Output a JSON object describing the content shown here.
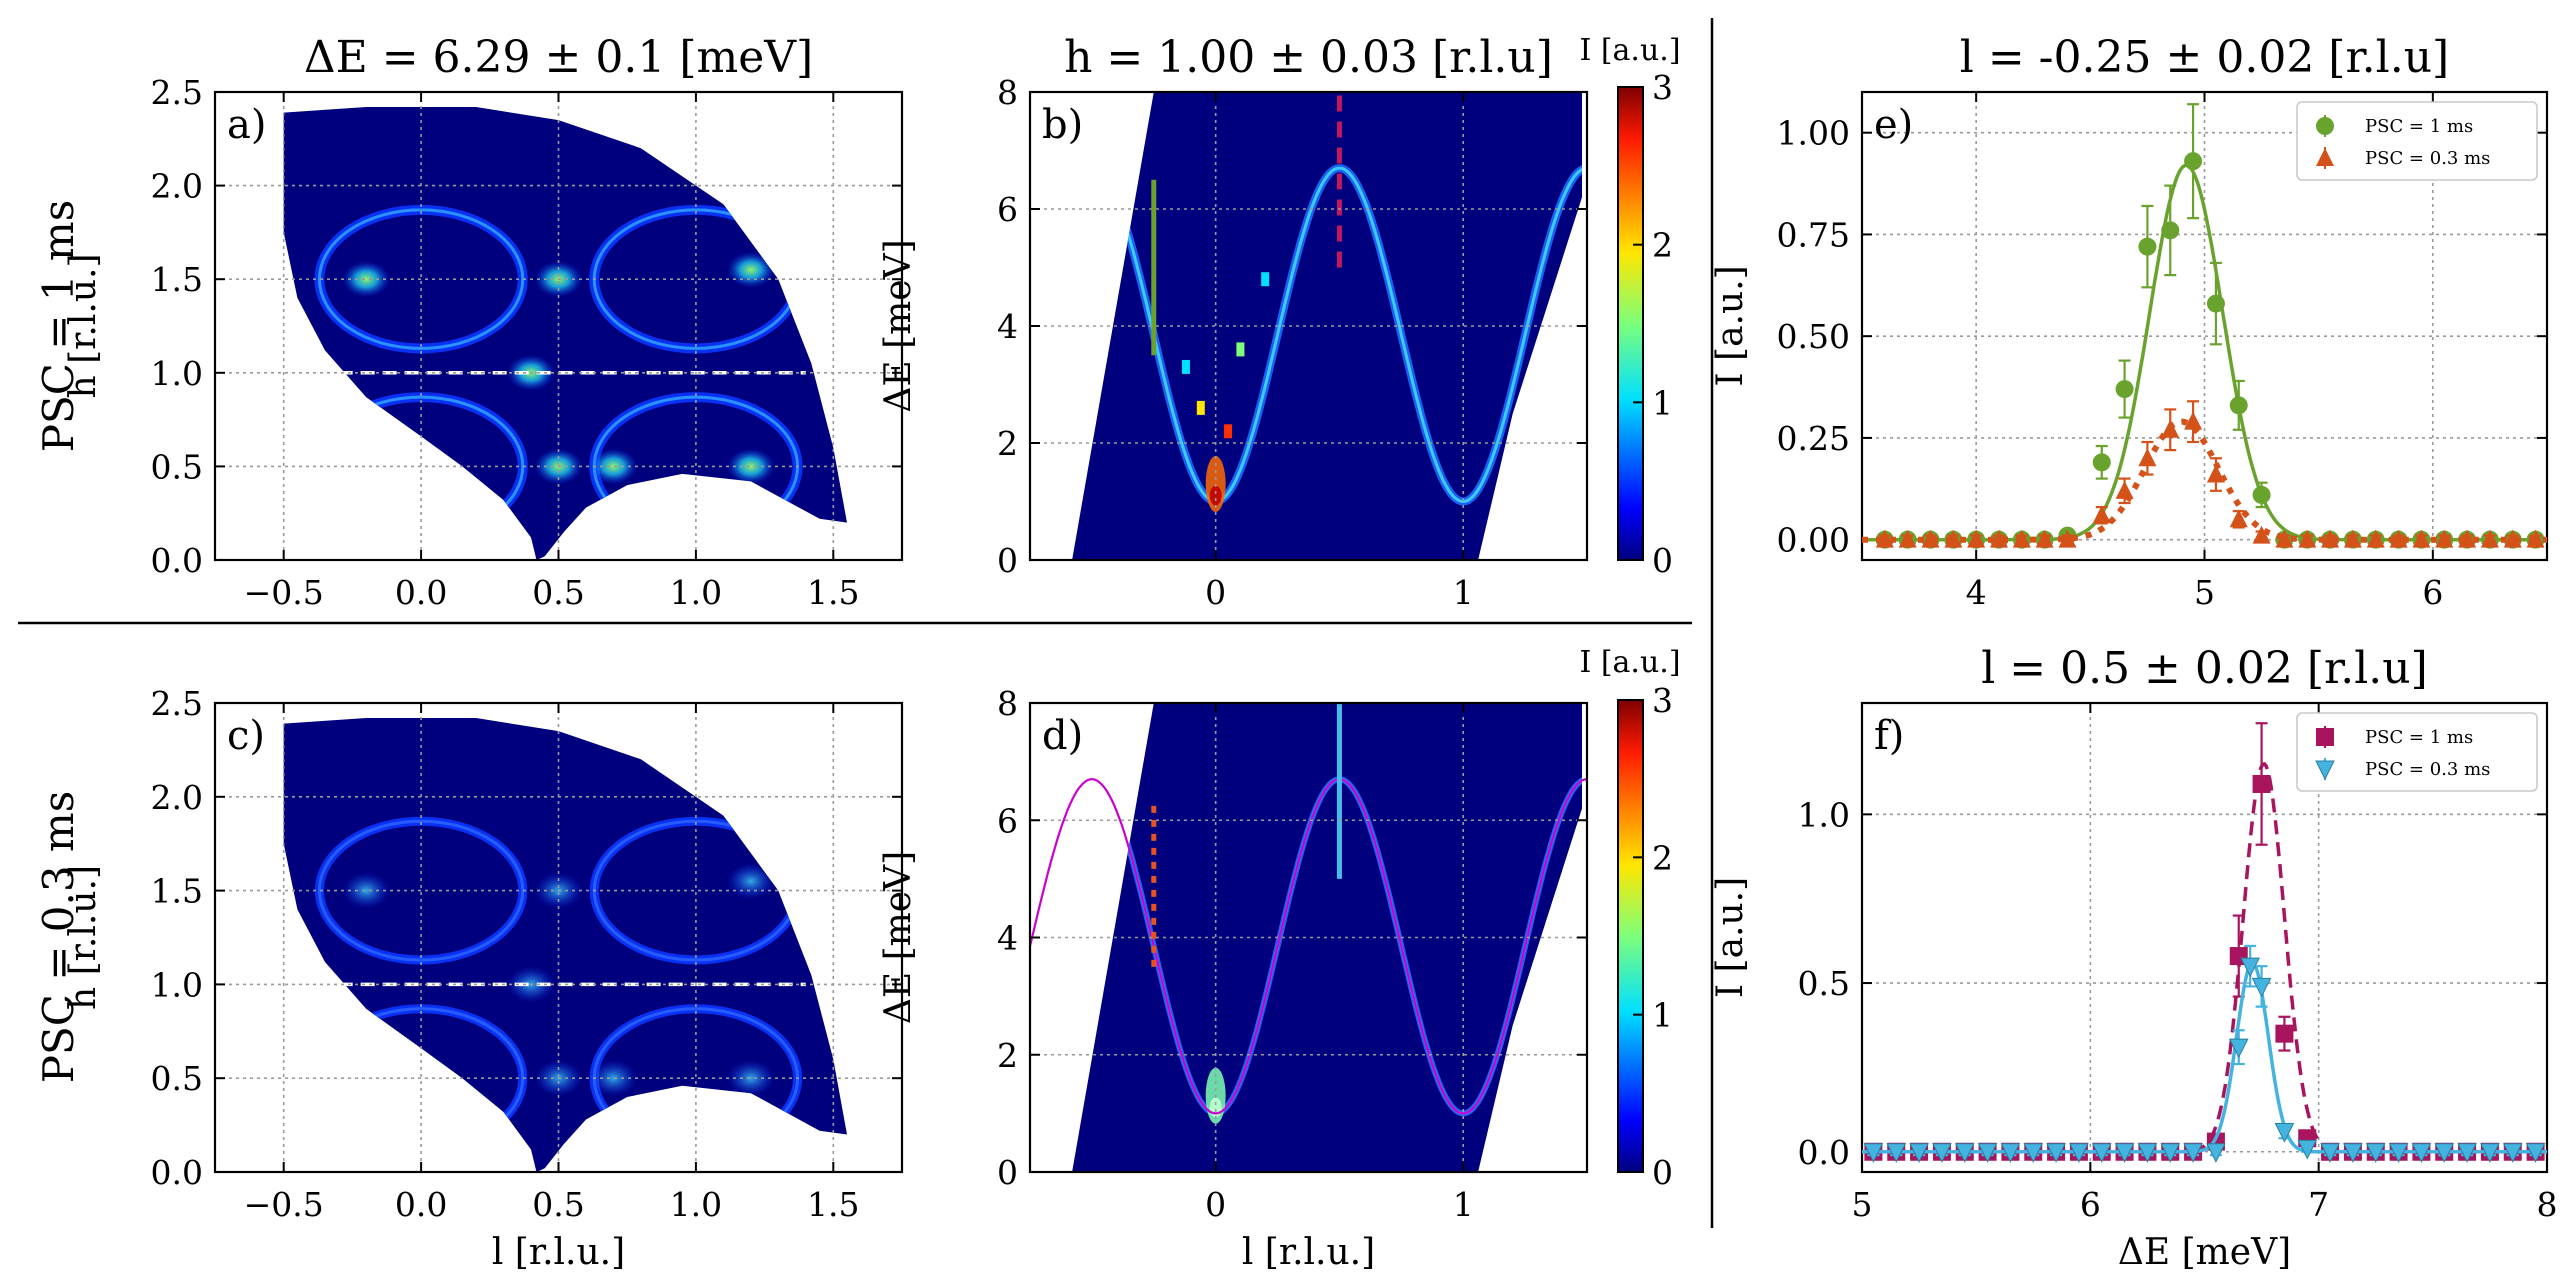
{
  "row_labels": {
    "top": "PSC = 1 ms",
    "bottom": "PSC = 0.3 ms"
  },
  "colorbar": {
    "title": "I [a.u.]",
    "ticks": [
      "0",
      "1",
      "2",
      "3"
    ]
  },
  "chart_data": [
    {
      "id": "a",
      "panel_label": "a)",
      "type": "heatmap",
      "title": "ΔE = 6.29 ± 0.1 [meV]",
      "xlabel": "",
      "ylabel": "h [r.l.u.]",
      "xlim": [
        -0.75,
        1.75
      ],
      "ylim": [
        0,
        2.5
      ],
      "xticks": [
        -0.5,
        0,
        0.5,
        1,
        1.5
      ],
      "xtick_labels": [
        "−0.5",
        "0.0",
        "0.5",
        "1.0",
        "1.5"
      ],
      "yticks": [
        0,
        0.5,
        1,
        1.5,
        2,
        2.5
      ],
      "ytick_labels": [
        "0.0",
        "0.5",
        "1.0",
        "1.5",
        "2.0",
        "2.5"
      ],
      "rings": [
        {
          "cx": 0,
          "cy": 1.5
        },
        {
          "cx": 1,
          "cy": 1.5
        },
        {
          "cx": 0,
          "cy": 0.5
        },
        {
          "cx": 1,
          "cy": 0.5
        }
      ],
      "ring_radius": 0.37,
      "cut_line": {
        "h": 1.0,
        "l_from": -0.3,
        "l_to": 1.4
      },
      "grid": true
    },
    {
      "id": "b",
      "panel_label": "b)",
      "type": "heatmap",
      "title": "h = 1.00 ± 0.03 [r.l.u]",
      "xlabel": "",
      "ylabel": "ΔE [meV]",
      "xlim": [
        -0.75,
        1.5
      ],
      "ylim": [
        0,
        8
      ],
      "xticks": [
        0,
        1
      ],
      "xtick_labels": [
        "0",
        "1"
      ],
      "yticks": [
        0,
        2,
        4,
        6,
        8
      ],
      "ytick_labels": [
        "0",
        "2",
        "4",
        "6",
        "8"
      ],
      "dispersion": {
        "E_min": 1.0,
        "E_max": 6.7,
        "l_min": 0,
        "l_max": 0.5
      },
      "markers": [
        {
          "l": -0.25,
          "E_from": 3.5,
          "E_to": 6.5,
          "color": "#6aa22e",
          "style": "solid"
        },
        {
          "l": 0.5,
          "E_from": 5.0,
          "E_to": 8.0,
          "color": "#c2185b",
          "style": "dashed"
        }
      ],
      "grid": true
    },
    {
      "id": "c",
      "panel_label": "c)",
      "type": "heatmap",
      "title": "",
      "xlabel": "l [r.l.u.]",
      "ylabel": "h [r.l.u.]",
      "xlim": [
        -0.75,
        1.75
      ],
      "ylim": [
        0,
        2.5
      ],
      "xticks": [
        -0.5,
        0,
        0.5,
        1,
        1.5
      ],
      "xtick_labels": [
        "−0.5",
        "0.0",
        "0.5",
        "1.0",
        "1.5"
      ],
      "yticks": [
        0,
        0.5,
        1,
        1.5,
        2,
        2.5
      ],
      "ytick_labels": [
        "0.0",
        "0.5",
        "1.0",
        "1.5",
        "2.0",
        "2.5"
      ],
      "rings": [
        {
          "cx": 0,
          "cy": 1.5
        },
        {
          "cx": 1,
          "cy": 1.5
        },
        {
          "cx": 0,
          "cy": 0.5
        },
        {
          "cx": 1,
          "cy": 0.5
        }
      ],
      "ring_radius": 0.37,
      "cut_line": {
        "h": 1.0,
        "l_from": -0.3,
        "l_to": 1.4
      },
      "grid": true
    },
    {
      "id": "d",
      "panel_label": "d)",
      "type": "heatmap",
      "title": "",
      "xlabel": "l [r.l.u.]",
      "ylabel": "ΔE [meV]",
      "xlim": [
        -0.75,
        1.5
      ],
      "ylim": [
        0,
        8
      ],
      "xticks": [
        0,
        1
      ],
      "xtick_labels": [
        "0",
        "1"
      ],
      "yticks": [
        0,
        2,
        4,
        6,
        8
      ],
      "ytick_labels": [
        "0",
        "2",
        "4",
        "6",
        "8"
      ],
      "dispersion": {
        "E_min": 1.0,
        "E_max": 6.7,
        "l_min": 0,
        "l_max": 0.5
      },
      "fit_curve_color": "#cc00cc",
      "markers": [
        {
          "l": -0.25,
          "E_from": 3.5,
          "E_to": 6.3,
          "color": "#e8531f",
          "style": "dotted"
        },
        {
          "l": 0.5,
          "E_from": 5.0,
          "E_to": 8.0,
          "color": "#44bde8",
          "style": "solid"
        }
      ],
      "grid": true
    },
    {
      "id": "e",
      "panel_label": "e)",
      "type": "scatter",
      "title": "l = -0.25 ± 0.02 [r.l.u]",
      "xlabel": "",
      "ylabel": "I [a.u.]",
      "xlim": [
        3.5,
        6.5
      ],
      "ylim": [
        -0.05,
        1.1
      ],
      "xticks": [
        4,
        5,
        6
      ],
      "xtick_labels": [
        "4",
        "5",
        "6"
      ],
      "yticks": [
        0,
        0.25,
        0.5,
        0.75,
        1.0
      ],
      "ytick_labels": [
        "0.00",
        "0.25",
        "0.50",
        "0.75",
        "1.00"
      ],
      "series": [
        {
          "name": "PSC = 1 ms",
          "marker": "circle",
          "color": "#6aa22e",
          "x": [
            3.6,
            3.7,
            3.8,
            3.9,
            4.0,
            4.1,
            4.2,
            4.3,
            4.4,
            4.55,
            4.65,
            4.75,
            4.85,
            4.95,
            5.05,
            5.15,
            5.25,
            5.35,
            5.45,
            5.55,
            5.65,
            5.75,
            5.85,
            5.95,
            6.05,
            6.15,
            6.25,
            6.35,
            6.45
          ],
          "y": [
            0,
            0,
            0,
            0,
            0,
            0,
            0,
            0,
            0.01,
            0.19,
            0.37,
            0.72,
            0.76,
            0.93,
            0.58,
            0.33,
            0.11,
            0,
            0,
            0,
            0,
            0,
            0,
            0,
            0,
            0,
            0,
            0,
            0
          ],
          "err": [
            0.01,
            0.01,
            0.01,
            0.01,
            0.01,
            0.01,
            0.01,
            0.01,
            0.01,
            0.04,
            0.07,
            0.1,
            0.11,
            0.14,
            0.1,
            0.06,
            0.03,
            0.01,
            0.01,
            0.01,
            0.01,
            0.01,
            0.01,
            0.01,
            0.01,
            0.01,
            0.01,
            0.01,
            0.01
          ],
          "fit": {
            "amp": 0.92,
            "center": 4.92,
            "sigma": 0.16,
            "style": "solid"
          }
        },
        {
          "name": "PSC = 0.3 ms",
          "marker": "triangle-up",
          "color": "#d4521a",
          "x": [
            3.6,
            3.7,
            3.8,
            3.9,
            4.0,
            4.1,
            4.2,
            4.3,
            4.4,
            4.55,
            4.65,
            4.75,
            4.85,
            4.95,
            5.05,
            5.15,
            5.25,
            5.35,
            5.45,
            5.55,
            5.65,
            5.75,
            5.85,
            5.95,
            6.05,
            6.15,
            6.25,
            6.35,
            6.45
          ],
          "y": [
            0,
            0,
            0,
            0,
            0,
            0,
            0,
            0,
            0,
            0.06,
            0.12,
            0.2,
            0.27,
            0.29,
            0.16,
            0.05,
            0.01,
            0,
            0,
            0,
            0,
            0,
            0,
            0,
            0,
            0,
            0,
            0,
            0
          ],
          "err": [
            0.01,
            0.01,
            0.01,
            0.01,
            0.01,
            0.01,
            0.01,
            0.01,
            0.01,
            0.02,
            0.03,
            0.04,
            0.05,
            0.05,
            0.04,
            0.02,
            0.01,
            0.01,
            0.01,
            0.01,
            0.01,
            0.01,
            0.01,
            0.01,
            0.01,
            0.01,
            0.01,
            0.01,
            0.01
          ],
          "fit": {
            "amp": 0.29,
            "center": 4.9,
            "sigma": 0.16,
            "style": "dotted"
          }
        }
      ],
      "legend": "top-right",
      "grid": true
    },
    {
      "id": "f",
      "panel_label": "f)",
      "type": "scatter",
      "title": "l = 0.5 ± 0.02 [r.l.u]",
      "xlabel": "ΔE [meV]",
      "ylabel": "I [a.u.]",
      "xlim": [
        5,
        8
      ],
      "ylim": [
        -0.06,
        1.33
      ],
      "xticks": [
        5,
        6,
        7,
        8
      ],
      "xtick_labels": [
        "5",
        "6",
        "7",
        "8"
      ],
      "yticks": [
        0,
        0.5,
        1.0
      ],
      "ytick_labels": [
        "0.0",
        "0.5",
        "1.0"
      ],
      "series": [
        {
          "name": "PSC = 1 ms",
          "marker": "square",
          "color": "#a8155e",
          "x": [
            5.05,
            5.15,
            5.25,
            5.35,
            5.45,
            5.55,
            5.65,
            5.75,
            5.85,
            5.95,
            6.05,
            6.15,
            6.25,
            6.35,
            6.45,
            6.55,
            6.65,
            6.75,
            6.85,
            6.95,
            7.05,
            7.15,
            7.25,
            7.35,
            7.45,
            7.55,
            7.65,
            7.75,
            7.85,
            7.95
          ],
          "y": [
            0,
            0,
            0,
            0,
            0,
            0,
            0,
            0,
            0,
            0,
            0,
            0,
            0,
            0,
            0,
            0.03,
            0.58,
            1.09,
            0.35,
            0.04,
            0,
            0,
            0,
            0,
            0,
            0,
            0,
            0,
            0,
            0
          ],
          "err": [
            0.01,
            0.01,
            0.01,
            0.01,
            0.01,
            0.01,
            0.01,
            0.01,
            0.01,
            0.01,
            0.01,
            0.01,
            0.01,
            0.01,
            0.01,
            0.02,
            0.12,
            0.18,
            0.05,
            0.02,
            0.01,
            0.01,
            0.01,
            0.01,
            0.01,
            0.01,
            0.01,
            0.01,
            0.01,
            0.01
          ],
          "fit": {
            "amp": 1.15,
            "center": 6.76,
            "sigma": 0.09,
            "style": "dashed"
          }
        },
        {
          "name": "PSC = 0.3 ms",
          "marker": "triangle-down",
          "color": "#44b3e0",
          "x": [
            5.05,
            5.15,
            5.25,
            5.35,
            5.45,
            5.55,
            5.65,
            5.75,
            5.85,
            5.95,
            6.05,
            6.15,
            6.25,
            6.35,
            6.45,
            6.55,
            6.65,
            6.7,
            6.75,
            6.85,
            6.95,
            7.05,
            7.15,
            7.25,
            7.35,
            7.45,
            7.55,
            7.65,
            7.75,
            7.85,
            7.95
          ],
          "y": [
            0,
            0,
            0,
            0,
            0,
            0,
            0,
            0,
            0,
            0,
            0,
            0,
            0,
            0,
            0,
            0,
            0.31,
            0.55,
            0.49,
            0.06,
            0.01,
            0,
            0,
            0,
            0,
            0,
            0,
            0,
            0,
            0,
            0
          ],
          "err": [
            0.01,
            0.01,
            0.01,
            0.01,
            0.01,
            0.01,
            0.01,
            0.01,
            0.01,
            0.01,
            0.01,
            0.01,
            0.01,
            0.01,
            0.01,
            0.01,
            0.05,
            0.06,
            0.06,
            0.02,
            0.01,
            0.01,
            0.01,
            0.01,
            0.01,
            0.01,
            0.01,
            0.01,
            0.01,
            0.01,
            0.01
          ],
          "fit": {
            "amp": 0.56,
            "center": 6.71,
            "sigma": 0.07,
            "style": "solid"
          }
        }
      ],
      "legend": "top-right",
      "grid": true
    }
  ]
}
